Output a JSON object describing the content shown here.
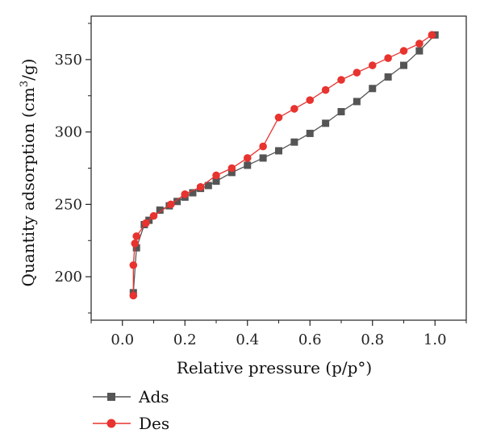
{
  "chart_data": {
    "type": "line",
    "xlabel": "Relative pressure (p/p°)",
    "ylabel": "Quantity adsorption (cm³/g)",
    "ylabel_parts": {
      "main": "Quantity adsorption (cm",
      "sup": "3",
      "tail": "/g)"
    },
    "xlim": [
      -0.1,
      1.1
    ],
    "ylim": [
      170,
      380
    ],
    "xticks": [
      0.0,
      0.2,
      0.4,
      0.6,
      0.8,
      1.0
    ],
    "xtick_labels": [
      "0.0",
      "0.2",
      "0.4",
      "0.6",
      "0.8",
      "1.0"
    ],
    "yticks": [
      200,
      250,
      300,
      350
    ],
    "ytick_labels": [
      "200",
      "250",
      "300",
      "350"
    ],
    "grid": false,
    "legend_position": "bottom-left",
    "series": [
      {
        "name": "Ads",
        "color": "#555555",
        "marker": "square",
        "x": [
          0.035,
          0.045,
          0.07,
          0.085,
          0.12,
          0.15,
          0.175,
          0.2,
          0.225,
          0.25,
          0.275,
          0.3,
          0.35,
          0.4,
          0.45,
          0.5,
          0.55,
          0.6,
          0.65,
          0.7,
          0.75,
          0.8,
          0.85,
          0.9,
          0.95,
          1.0
        ],
        "y": [
          189,
          220,
          236,
          239,
          246,
          249,
          252,
          255,
          258,
          261,
          263,
          266,
          272,
          277,
          282,
          287,
          293,
          299,
          306,
          314,
          321,
          330,
          338,
          346,
          356,
          367
        ]
      },
      {
        "name": "Des",
        "color": "#e8332f",
        "marker": "circle",
        "x": [
          0.035,
          0.035,
          0.04,
          0.045,
          0.075,
          0.1,
          0.155,
          0.2,
          0.25,
          0.3,
          0.35,
          0.4,
          0.45,
          0.5,
          0.55,
          0.6,
          0.65,
          0.7,
          0.75,
          0.8,
          0.85,
          0.9,
          0.95,
          0.99
        ],
        "y": [
          187,
          208,
          223,
          228,
          237,
          242,
          250,
          257,
          262,
          270,
          275,
          282,
          290,
          310,
          316,
          322,
          329,
          336,
          341,
          346,
          351,
          356,
          361,
          367
        ]
      }
    ]
  }
}
